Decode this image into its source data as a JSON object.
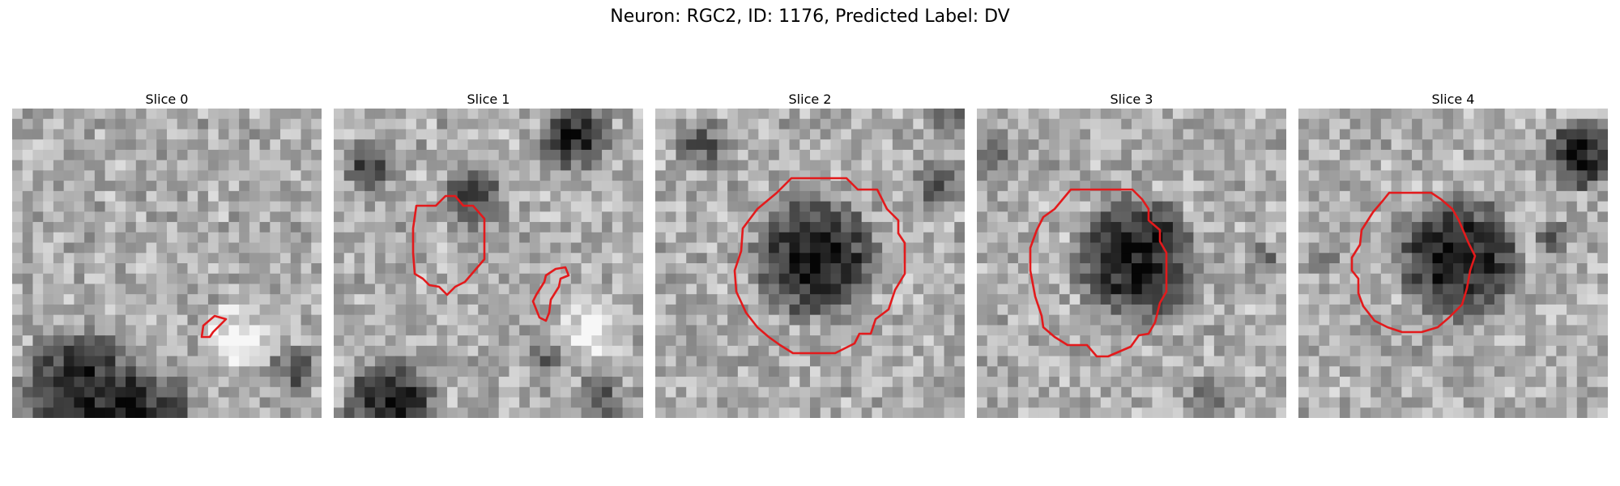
{
  "figure_title": "Neuron: RGC2, ID: 1176, Predicted Label: DV",
  "contour_color": "#e31a1c",
  "panels": [
    {
      "title": "Slice 0"
    },
    {
      "title": "Slice 1"
    },
    {
      "title": "Slice 2"
    },
    {
      "title": "Slice 3"
    },
    {
      "title": "Slice 4"
    }
  ]
}
